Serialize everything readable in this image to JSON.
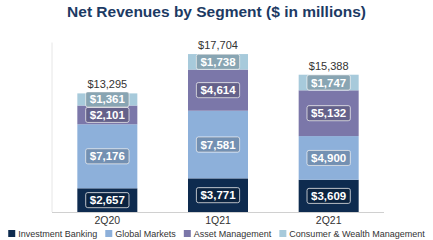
{
  "chart_data": {
    "type": "bar",
    "title": "Net Revenues by Segment ($ in millions)",
    "categories": [
      "2Q20",
      "1Q21",
      "2Q21"
    ],
    "stacked": true,
    "data_labels": true,
    "tick_labels": "x",
    "legend": "bottom",
    "ylim": [
      0,
      19000
    ],
    "series": [
      {
        "name": "Investment Banking",
        "color": "#0e2b4f",
        "values": [
          2657,
          3771,
          3609
        ],
        "value_labels": [
          "$2,657",
          "$3,771",
          "$3,609"
        ]
      },
      {
        "name": "Global Markets",
        "color": "#8db0da",
        "values": [
          7176,
          7581,
          4900
        ],
        "value_labels": [
          "$7,176",
          "$7,581",
          "$4,900"
        ]
      },
      {
        "name": "Asset Management",
        "color": "#7b77a9",
        "values": [
          2101,
          4614,
          5132
        ],
        "value_labels": [
          "$2,101",
          "$4,614",
          "$5,132"
        ]
      },
      {
        "name": "Consumer & Wealth Management",
        "color": "#a7cadb",
        "values": [
          1361,
          1738,
          1747
        ],
        "value_labels": [
          "$1,361",
          "$1,738",
          "$1,747"
        ]
      }
    ],
    "totals": [
      13295,
      17704,
      15388
    ],
    "total_labels": [
      "$13,295",
      "$17,704",
      "$15,388"
    ]
  }
}
